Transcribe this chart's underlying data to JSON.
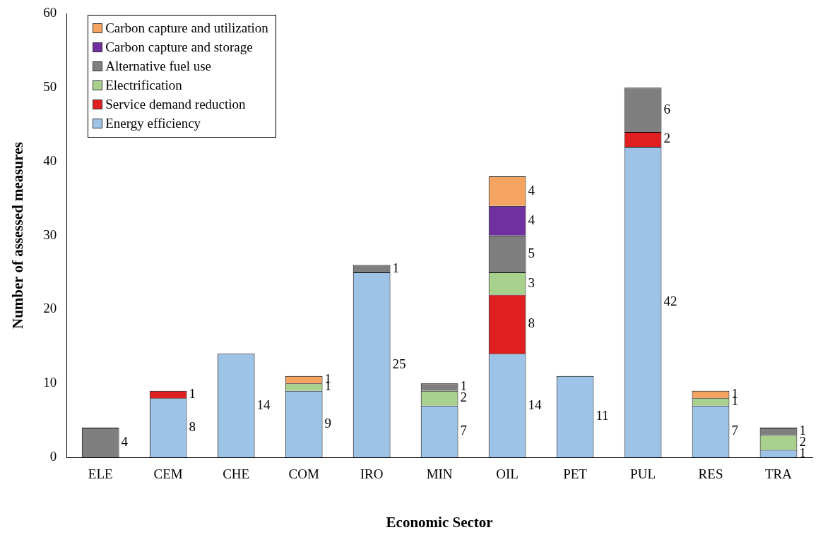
{
  "chart_data": {
    "type": "bar",
    "stacked": true,
    "xlabel": "Economic Sector",
    "ylabel": "Number of assessed measures",
    "categories": [
      "ELE",
      "CEM",
      "CHE",
      "COM",
      "IRO",
      "MIN",
      "OIL",
      "PET",
      "PUL",
      "RES",
      "TRA"
    ],
    "series": [
      {
        "name": "Energy efficiency",
        "color": "#9dc3e6",
        "values": [
          0,
          8,
          14,
          9,
          25,
          7,
          14,
          11,
          42,
          7,
          1
        ],
        "value_labels": [
          null,
          "8",
          "14",
          "9",
          "25",
          "7",
          "14",
          "11",
          "42",
          "7",
          "1"
        ]
      },
      {
        "name": "Service demand reduction",
        "color": "#e02020",
        "values": [
          0,
          1,
          0,
          0,
          0,
          0,
          8,
          0,
          2,
          0,
          0
        ],
        "value_labels": [
          null,
          "1",
          null,
          null,
          null,
          null,
          "8",
          null,
          "2",
          null,
          null
        ]
      },
      {
        "name": "Electrification",
        "color": "#a9d18e",
        "values": [
          0,
          0,
          0,
          1,
          0,
          2,
          3,
          0,
          0,
          1,
          2
        ],
        "value_labels": [
          null,
          null,
          null,
          "1",
          null,
          "2",
          "3",
          null,
          null,
          "1",
          "2"
        ]
      },
      {
        "name": "Alternative fuel use",
        "color": "#7f7f7f",
        "values": [
          4,
          0,
          0,
          0,
          1,
          1,
          5,
          0,
          6,
          0,
          1
        ],
        "value_labels": [
          "4",
          null,
          null,
          null,
          "1",
          "1",
          "5",
          null,
          "6",
          null,
          "1"
        ]
      },
      {
        "name": "Carbon capture and storage",
        "color": "#7030a0",
        "values": [
          0,
          0,
          0,
          0,
          0,
          0,
          4,
          0,
          0,
          0,
          0
        ],
        "value_labels": [
          null,
          null,
          null,
          null,
          null,
          null,
          "4",
          null,
          null,
          null,
          null
        ]
      },
      {
        "name": "Carbon capture and utilization",
        "color": "#f4a460",
        "values": [
          0,
          0,
          0,
          1,
          0,
          0,
          4,
          0,
          0,
          1,
          0
        ],
        "value_labels": [
          null,
          null,
          null,
          "1",
          null,
          null,
          "4",
          null,
          null,
          "1",
          null
        ]
      }
    ],
    "ylim": [
      0,
      60
    ],
    "yticks": [
      0,
      10,
      20,
      30,
      40,
      50,
      60
    ],
    "grid": false,
    "legend": "top left"
  }
}
